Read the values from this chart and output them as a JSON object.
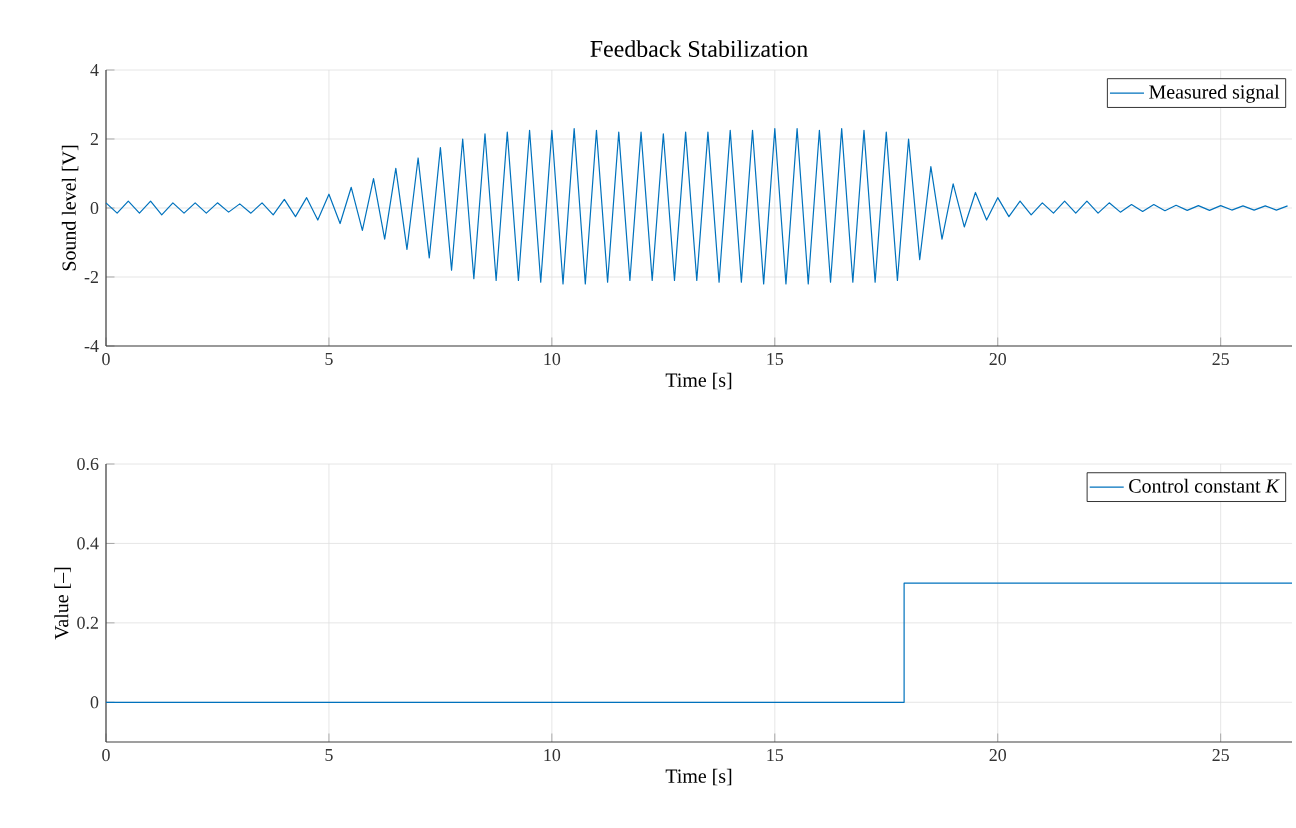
{
  "chart_data": [
    {
      "type": "line",
      "title": "Feedback Stabilization",
      "xlabel": "Time [s]",
      "ylabel": "Sound level [V]",
      "xlim": [
        0,
        26.6
      ],
      "ylim": [
        -4,
        4
      ],
      "xticks": [
        0,
        5,
        10,
        15,
        20,
        25
      ],
      "yticks": [
        -4,
        -2,
        0,
        2,
        4
      ],
      "grid": true,
      "legend": "top right",
      "series": [
        {
          "name": "Measured signal",
          "color": "#0072bd",
          "x": [
            0,
            0.25,
            0.5,
            0.75,
            1,
            1.25,
            1.5,
            1.75,
            2,
            2.25,
            2.5,
            2.75,
            3,
            3.25,
            3.5,
            3.75,
            4,
            4.25,
            4.5,
            4.75,
            5,
            5.25,
            5.5,
            5.75,
            6,
            6.25,
            6.5,
            6.75,
            7,
            7.25,
            7.5,
            7.75,
            8,
            8.25,
            8.5,
            8.75,
            9,
            9.25,
            9.5,
            9.75,
            10,
            10.25,
            10.5,
            10.75,
            11,
            11.25,
            11.5,
            11.75,
            12,
            12.25,
            12.5,
            12.75,
            13,
            13.25,
            13.5,
            13.75,
            14,
            14.25,
            14.5,
            14.75,
            15,
            15.25,
            15.5,
            15.75,
            16,
            16.25,
            16.5,
            16.75,
            17,
            17.25,
            17.5,
            17.75,
            18,
            18.25,
            18.5,
            18.75,
            19,
            19.25,
            19.5,
            19.75,
            20,
            20.25,
            20.5,
            20.75,
            21,
            21.25,
            21.5,
            21.75,
            22,
            22.25,
            22.5,
            22.75,
            23,
            23.25,
            23.5,
            23.75,
            24,
            24.25,
            24.5,
            24.75,
            25,
            25.25,
            25.5,
            25.75,
            26,
            26.25,
            26.5
          ],
          "values": [
            0.15,
            -0.15,
            0.2,
            -0.15,
            0.2,
            -0.2,
            0.15,
            -0.15,
            0.15,
            -0.15,
            0.15,
            -0.12,
            0.12,
            -0.15,
            0.15,
            -0.2,
            0.25,
            -0.25,
            0.3,
            -0.35,
            0.4,
            -0.45,
            0.6,
            -0.65,
            0.85,
            -0.9,
            1.15,
            -1.2,
            1.45,
            -1.45,
            1.75,
            -1.8,
            2.0,
            -2.05,
            2.15,
            -2.1,
            2.2,
            -2.1,
            2.25,
            -2.15,
            2.25,
            -2.2,
            2.3,
            -2.2,
            2.25,
            -2.15,
            2.2,
            -2.1,
            2.2,
            -2.1,
            2.15,
            -2.1,
            2.2,
            -2.1,
            2.2,
            -2.15,
            2.25,
            -2.15,
            2.25,
            -2.2,
            2.3,
            -2.2,
            2.3,
            -2.2,
            2.25,
            -2.15,
            2.3,
            -2.15,
            2.25,
            -2.15,
            2.2,
            -2.1,
            2.0,
            -1.5,
            1.2,
            -0.9,
            0.7,
            -0.55,
            0.45,
            -0.35,
            0.3,
            -0.25,
            0.2,
            -0.2,
            0.15,
            -0.15,
            0.2,
            -0.15,
            0.2,
            -0.15,
            0.15,
            -0.12,
            0.1,
            -0.1,
            0.1,
            -0.08,
            0.08,
            -0.07,
            0.07,
            -0.07,
            0.07,
            -0.06,
            0.06,
            -0.06,
            0.06,
            -0.06,
            0.06
          ]
        }
      ]
    },
    {
      "type": "step",
      "xlabel": "Time [s]",
      "ylabel": "Value [–]",
      "xlim": [
        0,
        26.6
      ],
      "ylim": [
        -0.1,
        0.6
      ],
      "xticks": [
        0,
        5,
        10,
        15,
        20,
        25
      ],
      "yticks": [
        0,
        0.2,
        0.4,
        0.6
      ],
      "grid": true,
      "legend": "top right",
      "series": [
        {
          "name": "Control constant *K*",
          "color": "#0072bd",
          "x": [
            0,
            17.9,
            26.6
          ],
          "values": [
            0,
            0.3,
            0.3
          ]
        }
      ]
    }
  ]
}
